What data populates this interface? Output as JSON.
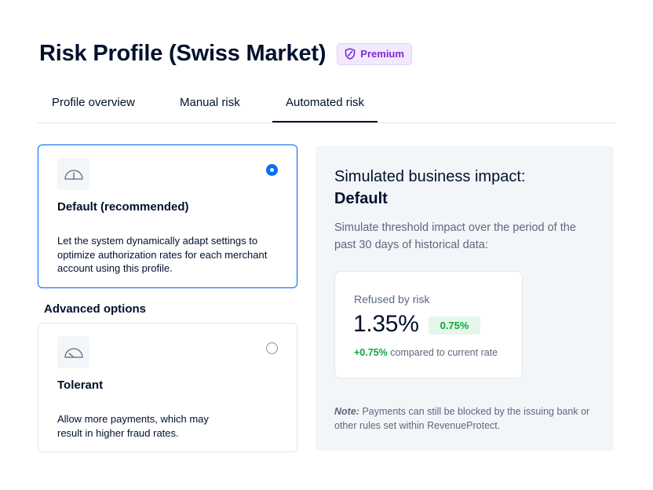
{
  "header": {
    "title": "Risk Profile (Swiss Market)",
    "badge": "Premium"
  },
  "tabs": [
    {
      "label": "Profile overview",
      "active": false
    },
    {
      "label": "Manual risk",
      "active": false
    },
    {
      "label": "Automated risk",
      "active": true
    }
  ],
  "options": {
    "default": {
      "title": "Default (recommended)",
      "description": "Let the system dynamically adapt settings to optimize authorization rates for each merchant account using this profile.",
      "selected": true,
      "icon": "gauge-icon"
    },
    "advanced_label": "Advanced options",
    "tolerant": {
      "title": "Tolerant",
      "description": "Allow more payments, which may result in higher fraud rates.",
      "selected": false,
      "icon": "gauge-low-icon"
    }
  },
  "impact": {
    "title": "Simulated business impact:",
    "subtitle": "Default",
    "description": "Simulate threshold impact over the period of the past 30 days of historical data:",
    "stat": {
      "label": "Refused by risk",
      "value": "1.35%",
      "delta": "0.75%",
      "compare_delta": "+0.75%",
      "compare_text": "compared to current rate"
    },
    "note_label": "Note:",
    "note_text": "Payments can still be blocked by the issuing bank or other rules set within RevenueProtect."
  },
  "colors": {
    "accent": "#0070f5",
    "text": "#00112c",
    "muted": "#5c687c",
    "premium": "#7a2bd0",
    "positive": "#0aa63d"
  }
}
